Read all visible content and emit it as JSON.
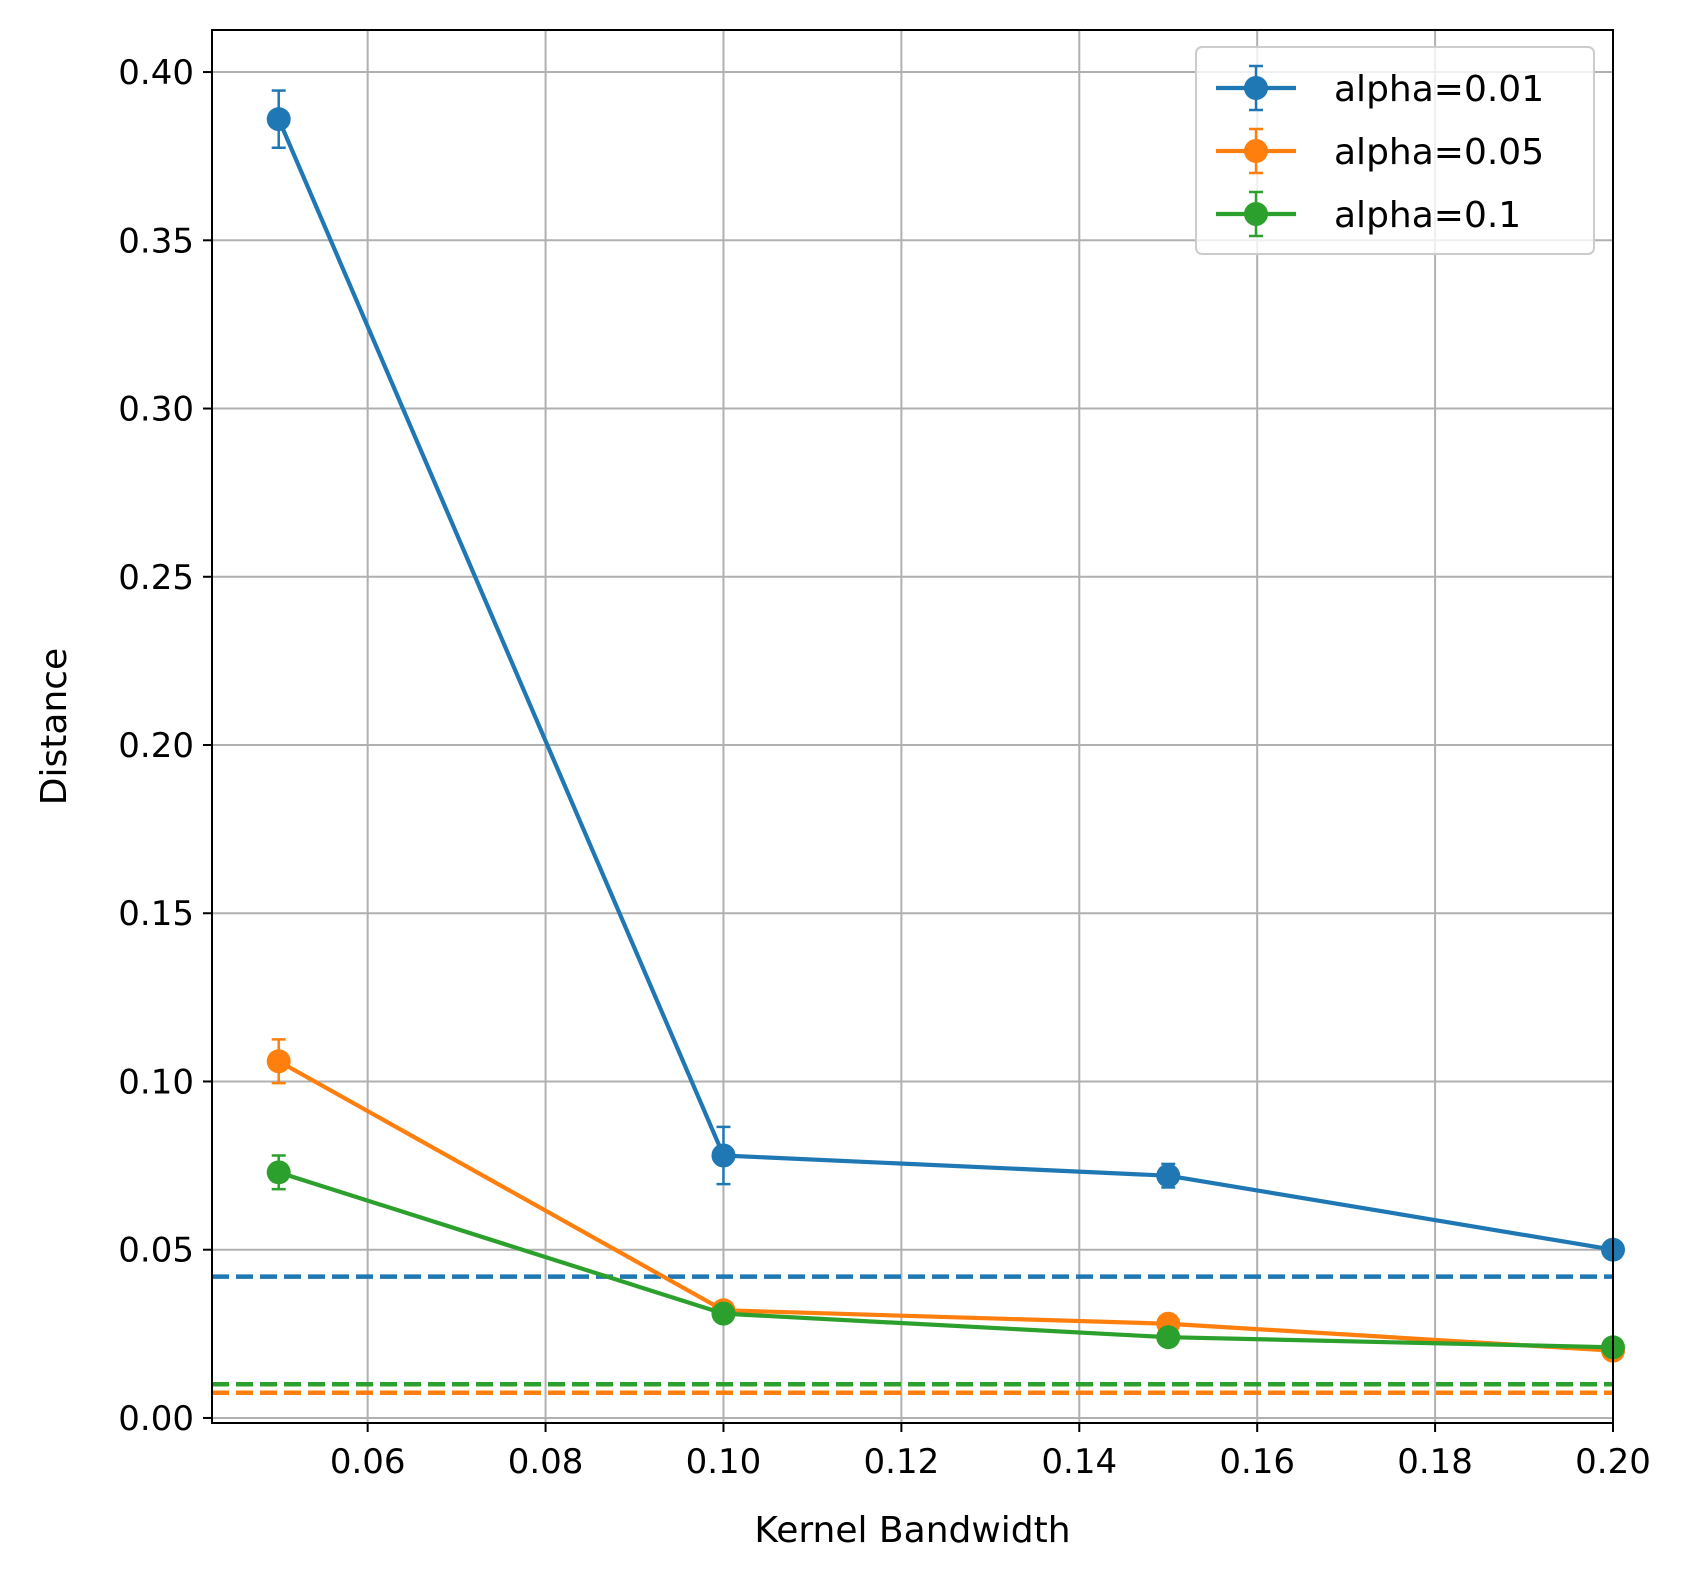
{
  "chart_data": {
    "type": "line",
    "title": "",
    "xlabel": "Kernel Bandwidth",
    "ylabel": "Distance",
    "xlim": [
      0.0425,
      0.2
    ],
    "ylim": [
      -0.0015,
      0.4125
    ],
    "xticks": [
      0.06,
      0.08,
      0.1,
      0.12,
      0.14,
      0.16,
      0.18,
      0.2
    ],
    "xtick_labels": [
      "0.06",
      "0.08",
      "0.10",
      "0.12",
      "0.14",
      "0.16",
      "0.18",
      "0.20"
    ],
    "yticks": [
      0.0,
      0.05,
      0.1,
      0.15,
      0.2,
      0.25,
      0.3,
      0.35,
      0.4
    ],
    "ytick_labels": [
      "0.00",
      "0.05",
      "0.10",
      "0.15",
      "0.20",
      "0.25",
      "0.30",
      "0.35",
      "0.40"
    ],
    "grid": true,
    "legend_position": "top-right",
    "series": [
      {
        "name": "alpha=0.01",
        "color": "#1f77b4",
        "x": [
          0.05,
          0.1,
          0.15,
          0.2
        ],
        "y": [
          0.386,
          0.078,
          0.072,
          0.05
        ],
        "yerr": [
          0.0085,
          0.0085,
          0.0035,
          0.002
        ],
        "baseline": 0.042
      },
      {
        "name": "alpha=0.05",
        "color": "#ff7f0e",
        "x": [
          0.05,
          0.1,
          0.15,
          0.2
        ],
        "y": [
          0.106,
          0.032,
          0.028,
          0.02
        ],
        "yerr": [
          0.0065,
          0.002,
          0.002,
          0.002
        ],
        "baseline": 0.0075
      },
      {
        "name": "alpha=0.1",
        "color": "#2ca02c",
        "x": [
          0.05,
          0.1,
          0.15,
          0.2
        ],
        "y": [
          0.073,
          0.031,
          0.024,
          0.021
        ],
        "yerr": [
          0.005,
          0.002,
          0.002,
          0.002
        ],
        "baseline": 0.01
      }
    ]
  }
}
